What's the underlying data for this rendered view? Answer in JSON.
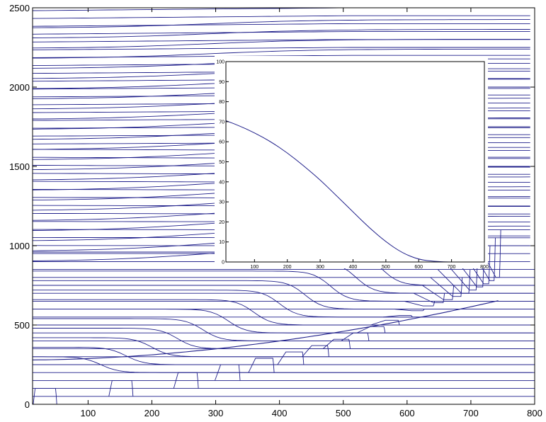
{
  "chart_data": [
    {
      "type": "line",
      "title": "",
      "xlabel": "",
      "ylabel": "",
      "xlim": [
        13,
        800
      ],
      "ylim": [
        0,
        2500
      ],
      "x_ticks": [
        "100",
        "200",
        "300",
        "400",
        "500",
        "600",
        "700",
        "800"
      ],
      "y_ticks": [
        "0",
        "500",
        "1000",
        "1500",
        "2000",
        "2500"
      ],
      "grid": false,
      "legend": "none",
      "line_color": "#1f1f8a",
      "series_description_values": {
        "horizontal_level_spacing": 50,
        "level_count": 51,
        "pulse_initial_height": 100,
        "pulse_centers": [
          33,
          153,
          256,
          322,
          376,
          423,
          463,
          497,
          527,
          553,
          576,
          597,
          616,
          633,
          649,
          664,
          678,
          691,
          703,
          714,
          724,
          733,
          742
        ],
        "pulse_source_levels": [
          0,
          50,
          100,
          150,
          200,
          250,
          300,
          350,
          400,
          450,
          500,
          550,
          600,
          650,
          700,
          750,
          800,
          850,
          900,
          950,
          1000,
          1050,
          1100
        ],
        "pulse_peak_levels": [
          100,
          150,
          200,
          250,
          290,
          330,
          370,
          410,
          450,
          490,
          530,
          560,
          590,
          620,
          640,
          660,
          680,
          700,
          720,
          740,
          760,
          780,
          800
        ]
      }
    },
    {
      "type": "line",
      "title": "",
      "xlabel": "",
      "ylabel": "",
      "xlim": [
        13,
        800
      ],
      "ylim": [
        0,
        100
      ],
      "x_ticks": [
        "100",
        "200",
        "300",
        "400",
        "500",
        "600",
        "700",
        "800"
      ],
      "y_ticks": [
        "0",
        "10",
        "20",
        "30",
        "40",
        "50",
        "60",
        "70",
        "80",
        "90",
        "100"
      ],
      "grid": false,
      "legend": "none",
      "line_color": "#1f1f8a",
      "series": [
        {
          "x": [
            13,
            50,
            100,
            150,
            200,
            250,
            300,
            350,
            400,
            450,
            500,
            550,
            600,
            650,
            700
          ],
          "y": [
            70.5,
            68.2,
            64.5,
            60.0,
            54.5,
            48.0,
            41.0,
            33.0,
            25.0,
            17.0,
            10.0,
            4.5,
            1.2,
            0.2,
            0
          ]
        }
      ]
    }
  ]
}
